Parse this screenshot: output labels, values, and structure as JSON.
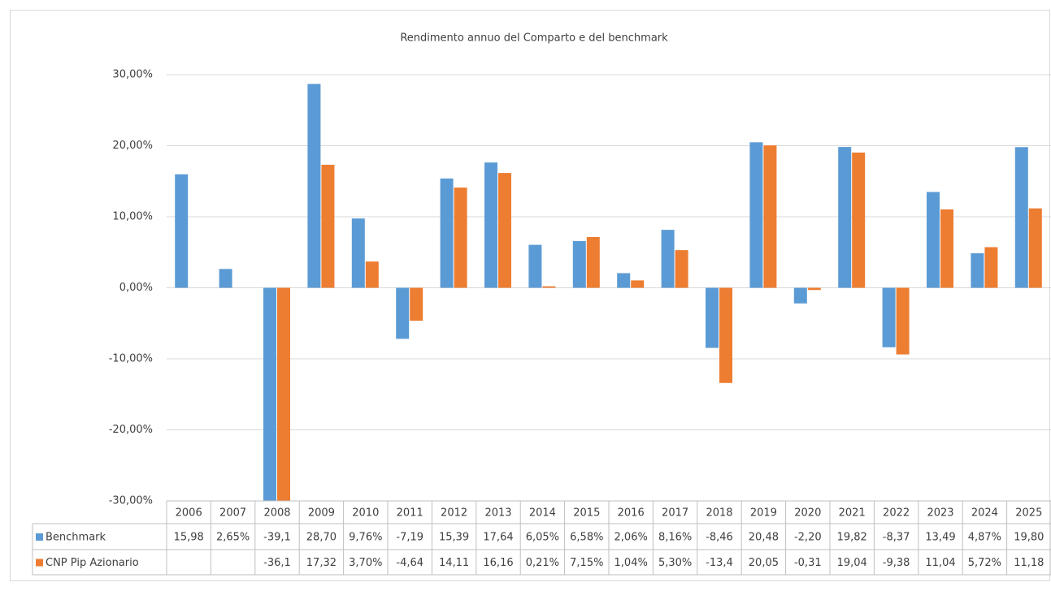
{
  "chart_data": {
    "type": "bar",
    "title": "Rendimento annuo del Comparto e del benchmark",
    "categories": [
      "2006",
      "2007",
      "2008",
      "2009",
      "2010",
      "2011",
      "2012",
      "2013",
      "2014",
      "2015",
      "2016",
      "2017",
      "2018",
      "2019",
      "2020",
      "2021",
      "2022",
      "2023",
      "2024",
      "2025"
    ],
    "series": [
      {
        "name": "Benchmark",
        "color": "#5b9bd5",
        "values": [
          15.98,
          2.65,
          -39.1,
          28.7,
          9.76,
          -7.19,
          15.39,
          17.64,
          6.05,
          6.58,
          2.06,
          8.16,
          -8.46,
          20.48,
          -2.2,
          19.82,
          -8.37,
          13.49,
          4.87,
          19.8
        ],
        "value_labels": [
          "15,98",
          "2,65%",
          "-39,1",
          "28,70",
          "9,76%",
          "-7,19",
          "15,39",
          "17,64",
          "6,05%",
          "6,58%",
          "2,06%",
          "8,16%",
          "-8,46",
          "20,48",
          "-2,20",
          "19,82",
          "-8,37",
          "13,49",
          "4,87%",
          "19,80"
        ]
      },
      {
        "name": "CNP Pip Azionario",
        "color": "#ed7d31",
        "values": [
          null,
          null,
          -36.1,
          17.32,
          3.7,
          -4.64,
          14.11,
          16.16,
          0.21,
          7.15,
          1.04,
          5.3,
          -13.4,
          20.05,
          -0.31,
          19.04,
          -9.38,
          11.04,
          5.72,
          11.18
        ],
        "value_labels": [
          null,
          null,
          "-36,1",
          "17,32",
          "3,70%",
          "-4,64",
          "14,11",
          "16,16",
          "0,21%",
          "7,15%",
          "1,04%",
          "5,30%",
          "-13,4",
          "20,05",
          "-0,31",
          "19,04",
          "-9,38",
          "11,04",
          "5,72%",
          "11,18"
        ]
      }
    ],
    "ylim": [
      -30,
      30
    ],
    "yticks": [
      {
        "value": -30,
        "label": "-30,00%"
      },
      {
        "value": -20,
        "label": "-20,00%"
      },
      {
        "value": -10,
        "label": "-10,00%"
      },
      {
        "value": 0,
        "label": "0,00%"
      },
      {
        "value": 10,
        "label": "10,00%"
      },
      {
        "value": 20,
        "label": "20,00%"
      },
      {
        "value": 30,
        "label": "30,00%"
      }
    ],
    "grid": true
  }
}
